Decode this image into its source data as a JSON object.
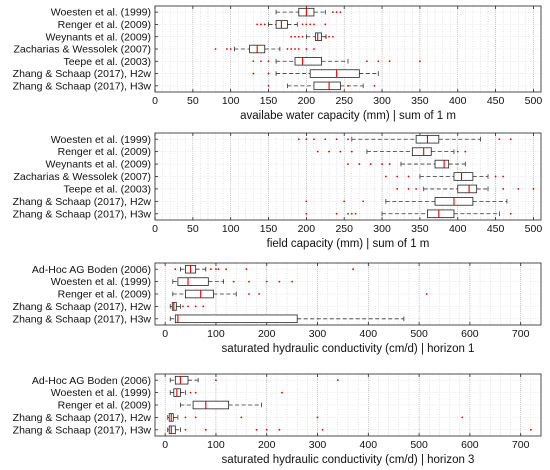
{
  "chart_data": [
    {
      "type": "boxplot",
      "orientation": "horizontal",
      "xlabel": "availabe water capacity (mm)  |  sum of  1 m",
      "xlim": [
        0,
        510
      ],
      "xticks": [
        0,
        50,
        100,
        150,
        200,
        250,
        300,
        350,
        400,
        450,
        500
      ],
      "grid": true,
      "categories": [
        "Woesten et al. (1999)",
        "Renger et al. (2009)",
        "Weynants et al. (2009)",
        "Zacharias & Wessolek (2007)",
        "Teepe et al. (2003)",
        "Zhang & Schaap (2017), H2w",
        "Zhang & Schaap (2017), H3w"
      ],
      "boxes": [
        {
          "whisker_low": 160,
          "q1": 190,
          "median": 200,
          "q3": 210,
          "whisker_high": 225,
          "outliers": [
            235,
            240,
            245
          ]
        },
        {
          "whisker_low": 150,
          "q1": 160,
          "median": 167,
          "q3": 175,
          "whisker_high": 188,
          "outliers": [
            135,
            140,
            145,
            195,
            200,
            205,
            210,
            225
          ]
        },
        {
          "whisker_low": 200,
          "q1": 212,
          "median": 215,
          "q3": 220,
          "whisker_high": 226,
          "outliers": [
            180,
            185,
            190,
            195,
            225,
            230,
            235
          ]
        },
        {
          "whisker_low": 105,
          "q1": 125,
          "median": 135,
          "q3": 145,
          "whisker_high": 165,
          "outliers": [
            80,
            95,
            100,
            175,
            180,
            185,
            190,
            200,
            210
          ]
        },
        {
          "whisker_low": 160,
          "q1": 185,
          "median": 195,
          "q3": 220,
          "whisker_high": 255,
          "outliers": [
            130,
            140,
            150,
            280,
            295,
            310,
            350
          ]
        },
        {
          "whisker_low": 160,
          "q1": 205,
          "median": 240,
          "q3": 270,
          "whisker_high": 295,
          "outliers": [
            130,
            150
          ]
        },
        {
          "whisker_low": 175,
          "q1": 210,
          "median": 230,
          "q3": 245,
          "whisker_high": 275,
          "outliers": [
            150,
            255,
            290
          ]
        }
      ]
    },
    {
      "type": "boxplot",
      "orientation": "horizontal",
      "xlabel": "field capacity (mm)  |  sum of  1 m",
      "xlim": [
        0,
        510
      ],
      "xticks": [
        0,
        50,
        100,
        150,
        200,
        250,
        300,
        350,
        400,
        450,
        500
      ],
      "grid": true,
      "categories": [
        "Woesten et al. (1999)",
        "Renger et al. (2009)",
        "Weynants et al. (2009)",
        "Zacharias & Wessolek (2007)",
        "Teepe et al. (2003)",
        "Zhang & Schaap (2017), H2w",
        "Zhang & Schaap (2017), H3w"
      ],
      "boxes": [
        {
          "whisker_low": 260,
          "q1": 345,
          "median": 360,
          "q3": 375,
          "whisker_high": 430,
          "outliers": [
            190,
            200,
            210,
            225,
            240,
            255,
            455,
            470
          ]
        },
        {
          "whisker_low": 280,
          "q1": 340,
          "median": 355,
          "q3": 365,
          "whisker_high": 395,
          "outliers": [
            215,
            230,
            245,
            260,
            400,
            410
          ]
        },
        {
          "whisker_low": 325,
          "q1": 370,
          "median": 382,
          "q3": 388,
          "whisker_high": 410,
          "outliers": [
            255,
            270,
            285,
            300,
            310
          ]
        },
        {
          "whisker_low": 350,
          "q1": 395,
          "median": 405,
          "q3": 420,
          "whisker_high": 440,
          "outliers": [
            305,
            320,
            335,
            450,
            460
          ]
        },
        {
          "whisker_low": 355,
          "q1": 400,
          "median": 415,
          "q3": 425,
          "whisker_high": 440,
          "outliers": [
            320,
            335,
            345,
            460,
            480,
            500
          ]
        },
        {
          "whisker_low": 305,
          "q1": 370,
          "median": 395,
          "q3": 420,
          "whisker_high": 465,
          "outliers": [
            200,
            250,
            275
          ]
        },
        {
          "whisker_low": 300,
          "q1": 360,
          "median": 375,
          "q3": 395,
          "whisker_high": 455,
          "outliers": [
            200,
            240,
            255,
            260,
            265,
            470
          ]
        }
      ]
    },
    {
      "type": "boxplot",
      "orientation": "horizontal",
      "xlabel": "saturated hydraulic conductivity (cm/d)  |  horizon  1",
      "xlim": [
        -20,
        740
      ],
      "xticks": [
        0,
        100,
        200,
        300,
        400,
        500,
        600,
        700
      ],
      "grid": true,
      "categories": [
        "Ad-Hoc AG Boden (2006)",
        "Woesten et al. (1999)",
        "Renger et al. (2009)",
        "Zhang & Schaap (2017), H2w",
        "Zhang & Schaap (2017), H3w"
      ],
      "boxes": [
        {
          "whisker_low": 30,
          "q1": 40,
          "median": 50,
          "q3": 60,
          "whisker_high": 80,
          "outliers": [
            20,
            90,
            100,
            105,
            120,
            160,
            370
          ]
        },
        {
          "whisker_low": 15,
          "q1": 25,
          "median": 45,
          "q3": 85,
          "whisker_high": 115,
          "outliers": [
            135,
            165,
            200,
            225,
            250
          ]
        },
        {
          "whisker_low": 15,
          "q1": 40,
          "median": 70,
          "q3": 95,
          "whisker_high": 140,
          "outliers": [
            165,
            185,
            515
          ]
        },
        {
          "whisker_low": 10,
          "q1": 14,
          "median": 17,
          "q3": 22,
          "whisker_high": 30,
          "outliers": [
            35,
            45,
            60,
            75
          ]
        },
        {
          "whisker_low": 10,
          "q1": 20,
          "median": 25,
          "q3": 260,
          "whisker_high": 470,
          "outliers": []
        }
      ]
    },
    {
      "type": "boxplot",
      "orientation": "horizontal",
      "xlabel": "saturated hydraulic conductivity (cm/d)  |  horizon  3",
      "xlim": [
        -20,
        740
      ],
      "xticks": [
        0,
        100,
        200,
        300,
        400,
        500,
        600,
        700
      ],
      "grid": true,
      "categories": [
        "Ad-Hoc AG Boden (2006)",
        "Woesten et al. (1999)",
        "Renger et al. (2009)",
        "Zhang & Schaap (2017), H2w",
        "Zhang & Schaap (2017), H3w"
      ],
      "boxes": [
        {
          "whisker_low": 10,
          "q1": 20,
          "median": 30,
          "q3": 45,
          "whisker_high": 65,
          "outliers": [
            100,
            340
          ]
        },
        {
          "whisker_low": 10,
          "q1": 17,
          "median": 23,
          "q3": 30,
          "whisker_high": 40,
          "outliers": [
            50,
            60,
            230
          ]
        },
        {
          "whisker_low": 30,
          "q1": 55,
          "median": 80,
          "q3": 125,
          "whisker_high": 190,
          "outliers": []
        },
        {
          "whisker_low": 5,
          "q1": 8,
          "median": 12,
          "q3": 16,
          "whisker_high": 25,
          "outliers": [
            40,
            60,
            150,
            300,
            585
          ]
        },
        {
          "whisker_low": 5,
          "q1": 8,
          "median": 12,
          "q3": 20,
          "whisker_high": 30,
          "outliers": [
            40,
            80,
            180,
            200,
            225,
            310,
            720
          ]
        }
      ]
    }
  ]
}
